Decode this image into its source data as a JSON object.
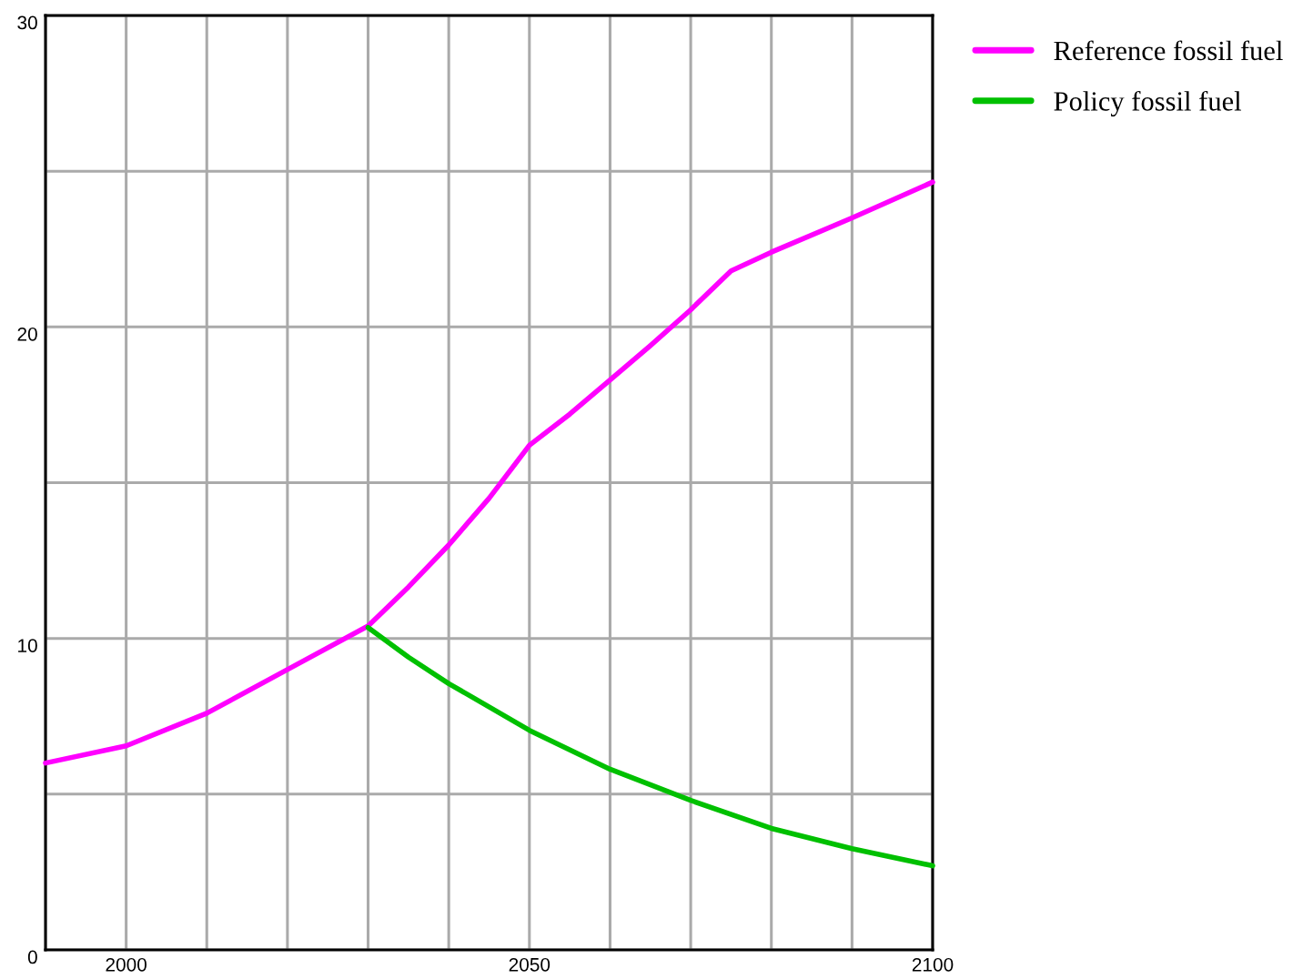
{
  "chart_data": {
    "type": "line",
    "xlim": [
      1990,
      2100
    ],
    "xticks": [
      {
        "value": 1990,
        "label": null
      },
      2000,
      {
        "value": 2010,
        "label": null
      },
      {
        "value": 2020,
        "label": null
      },
      {
        "value": 2030,
        "label": null
      },
      {
        "value": 2040,
        "label": null
      },
      2050,
      {
        "value": 2060,
        "label": null
      },
      {
        "value": 2070,
        "label": null
      },
      {
        "value": 2080,
        "label": null
      },
      {
        "value": 2090,
        "label": null
      },
      2100
    ],
    "ylim": [
      0,
      30
    ],
    "yticks": [
      0,
      {
        "value": 5,
        "label": null
      },
      10,
      {
        "value": 15,
        "label": null
      },
      20,
      {
        "value": 25,
        "label": null
      },
      30
    ],
    "grid": true,
    "legend": "top right",
    "marker": "none",
    "line_style": "solid",
    "series": [
      {
        "name": "Reference fossil fuel",
        "color": "#ff00ff",
        "x": [
          1990,
          2000,
          2010,
          2020,
          2030,
          2035,
          2040,
          2045,
          2050,
          2055,
          2060,
          2065,
          2070,
          2075,
          2080,
          2090,
          2100
        ],
        "values": [
          6.0,
          6.55,
          7.6,
          9.0,
          10.4,
          11.65,
          13.0,
          14.5,
          16.2,
          17.2,
          18.3,
          19.4,
          20.55,
          21.8,
          22.4,
          23.5,
          24.65
        ]
      },
      {
        "name": "Policy fossil fuel",
        "color": "#00c000",
        "x": [
          2030,
          2035,
          2040,
          2050,
          2060,
          2070,
          2080,
          2090,
          2100
        ],
        "values": [
          10.35,
          9.4,
          8.55,
          7.05,
          5.8,
          4.8,
          3.9,
          3.25,
          2.7
        ]
      }
    ]
  }
}
